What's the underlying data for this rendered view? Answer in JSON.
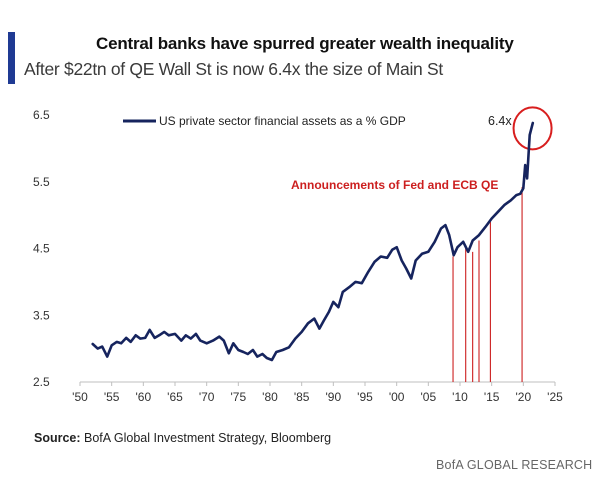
{
  "colors": {
    "accent": "#1f3a93",
    "series": "#16245e",
    "annotation": "#cc1f1f"
  },
  "header": {
    "title": "Central banks have spurred greater wealth inequality",
    "subtitle": "After $22tn of QE Wall St is now 6.4x the size of Main St"
  },
  "footer": {
    "source_label": "Source:",
    "source_text": " BofA Global Investment Strategy, Bloomberg",
    "brand": "BofA GLOBAL RESEARCH"
  },
  "chart_data": {
    "type": "line",
    "title": "Central banks have spurred greater wealth inequality",
    "subtitle": "After $22tn of QE Wall St is now 6.4x the size of Main St",
    "xlabel": "",
    "ylabel": "",
    "xlim": [
      1950,
      2025
    ],
    "ylim": [
      2.5,
      6.5
    ],
    "yticks": [
      2.5,
      3.5,
      4.5,
      5.5,
      6.5
    ],
    "ytick_labels": [
      "2.5",
      "3.5",
      "4.5",
      "5.5",
      "6.5"
    ],
    "xticks": [
      1950,
      1955,
      1960,
      1965,
      1970,
      1975,
      1980,
      1985,
      1990,
      1995,
      2000,
      2005,
      2010,
      2015,
      2020,
      2025
    ],
    "xtick_labels": [
      "'50",
      "'55",
      "'60",
      "'65",
      "'70",
      "'75",
      "'80",
      "'85",
      "'90",
      "'95",
      "'00",
      "'05",
      "'10",
      "'15",
      "'20",
      "'25"
    ],
    "grid": false,
    "legend_position": "top-left",
    "series": [
      {
        "name": "US private sector financial assets as a % GDP",
        "x": [
          1952,
          1952.8,
          1953.5,
          1954.3,
          1955,
          1955.8,
          1956.5,
          1957.3,
          1958,
          1958.8,
          1959.5,
          1960.3,
          1961,
          1961.8,
          1962.5,
          1963.3,
          1964,
          1965,
          1966,
          1966.7,
          1967.5,
          1968.3,
          1969,
          1970,
          1971,
          1972,
          1972.7,
          1973.5,
          1974.2,
          1975,
          1975.8,
          1976.5,
          1977.3,
          1978,
          1978.8,
          1979.5,
          1980.3,
          1981,
          1982,
          1983,
          1984,
          1985,
          1986,
          1987,
          1987.8,
          1988.5,
          1989.3,
          1990,
          1990.8,
          1991.5,
          1992.5,
          1993.5,
          1994.5,
          1995.5,
          1996.5,
          1997.5,
          1998.5,
          1999.3,
          2000,
          2000.8,
          2001.5,
          2002.3,
          2003,
          2004,
          2005,
          2006,
          2007,
          2007.7,
          2008.3,
          2009,
          2009.6,
          2010.5,
          2011.3,
          2012,
          2013,
          2014,
          2015,
          2016,
          2017,
          2018,
          2018.9,
          2019.5,
          2020,
          2020.3,
          2020.6,
          2021,
          2021.5
        ],
        "values": [
          3.07,
          3.0,
          3.03,
          2.88,
          3.05,
          3.1,
          3.08,
          3.16,
          3.1,
          3.2,
          3.15,
          3.16,
          3.28,
          3.16,
          3.2,
          3.25,
          3.2,
          3.22,
          3.12,
          3.2,
          3.15,
          3.22,
          3.12,
          3.08,
          3.12,
          3.18,
          3.12,
          2.93,
          3.08,
          2.98,
          2.95,
          2.92,
          2.98,
          2.88,
          2.92,
          2.86,
          2.83,
          2.95,
          2.98,
          3.02,
          3.15,
          3.25,
          3.38,
          3.45,
          3.3,
          3.42,
          3.55,
          3.7,
          3.62,
          3.85,
          3.92,
          4.0,
          3.98,
          4.15,
          4.3,
          4.38,
          4.36,
          4.48,
          4.52,
          4.32,
          4.2,
          4.05,
          4.32,
          4.42,
          4.45,
          4.6,
          4.8,
          4.85,
          4.7,
          4.4,
          4.52,
          4.6,
          4.45,
          4.62,
          4.7,
          4.82,
          4.95,
          5.05,
          5.15,
          5.22,
          5.3,
          5.32,
          5.4,
          5.75,
          5.55,
          6.2,
          6.38
        ]
      }
    ],
    "annotation_text": "Announcements of Fed and ECB QE",
    "qe_announcements": [
      {
        "year": 2008.9,
        "value": 4.38
      },
      {
        "year": 2010.9,
        "value": 4.55
      },
      {
        "year": 2012.0,
        "value": 4.45
      },
      {
        "year": 2013.0,
        "value": 4.62
      },
      {
        "year": 2014.8,
        "value": 4.9
      },
      {
        "year": 2019.8,
        "value": 5.42
      }
    ],
    "highlight": {
      "label": "6.4x",
      "year": 2021.3,
      "value": 6.3
    }
  }
}
